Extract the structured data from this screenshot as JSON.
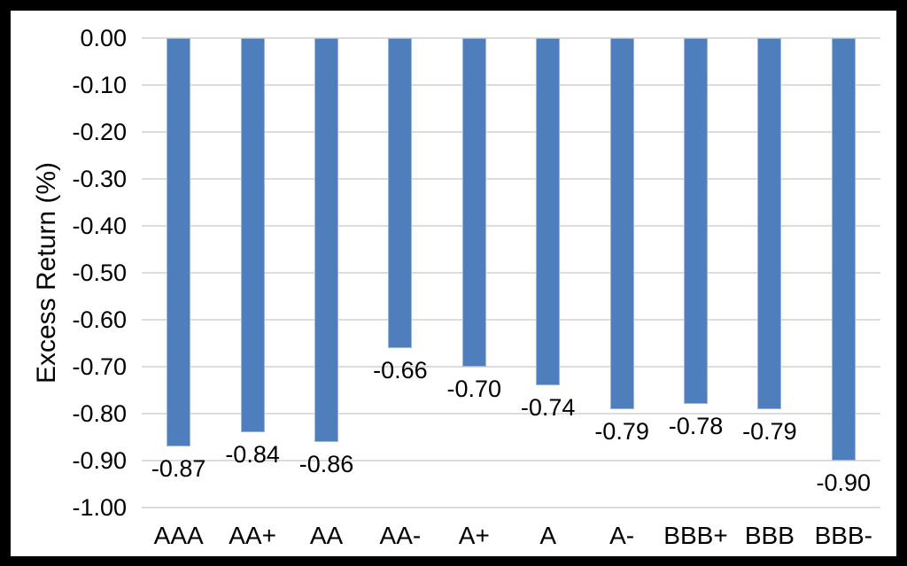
{
  "chart_data": {
    "type": "bar",
    "title": "",
    "ylabel": "Excess Return (%)",
    "xlabel": "",
    "categories": [
      "AAA",
      "AA+",
      "AA",
      "AA-",
      "A+",
      "A",
      "A-",
      "BBB+",
      "BBB",
      "BBB-"
    ],
    "values": [
      -0.87,
      -0.84,
      -0.86,
      -0.66,
      -0.7,
      -0.74,
      -0.79,
      -0.78,
      -0.79,
      -0.9
    ],
    "data_labels": [
      "-0.87",
      "-0.84",
      "-0.86",
      "-0.66",
      "-0.70",
      "-0.74",
      "-0.79",
      "-0.78",
      "-0.79",
      "-0.90"
    ],
    "ylim": [
      -1.0,
      0.0
    ],
    "yticks": [
      {
        "value": 0.0,
        "label": "0.00"
      },
      {
        "value": -0.1,
        "label": "-0.10"
      },
      {
        "value": -0.2,
        "label": "-0.20"
      },
      {
        "value": -0.3,
        "label": "-0.30"
      },
      {
        "value": -0.4,
        "label": "-0.40"
      },
      {
        "value": -0.5,
        "label": "-0.50"
      },
      {
        "value": -0.6,
        "label": "-0.60"
      },
      {
        "value": -0.7,
        "label": "-0.70"
      },
      {
        "value": -0.8,
        "label": "-0.80"
      },
      {
        "value": -0.9,
        "label": "-0.90"
      },
      {
        "value": -1.0,
        "label": "-1.00"
      }
    ],
    "grid": "horizontal",
    "legend": "none",
    "colors": {
      "bar": "#4E7FBC",
      "bar_edge": "#9DB8DC",
      "gridline": "#DCDCDC",
      "text": "#000000",
      "plot_background": "#FFFFFF",
      "frame": "#000000"
    }
  }
}
